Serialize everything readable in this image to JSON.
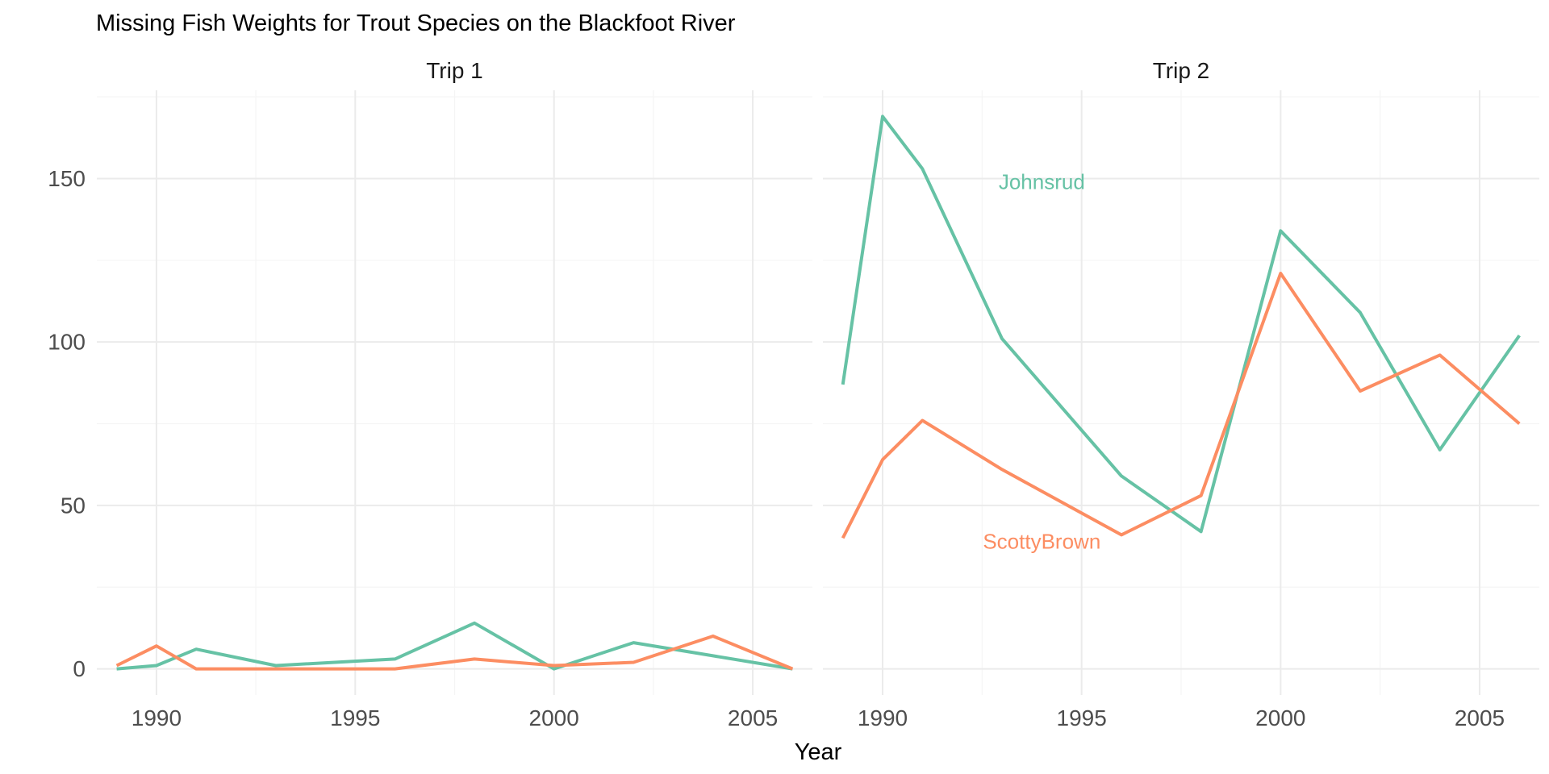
{
  "chart_data": {
    "type": "line",
    "title": "Missing Fish Weights for Trout Species on the Blackfoot River",
    "xlabel": "Year",
    "ylabel": "",
    "xlim": [
      1988.5,
      2006.5
    ],
    "ylim": [
      -8,
      177
    ],
    "x_ticks": [
      1990,
      1995,
      2000,
      2005
    ],
    "y_ticks": [
      0,
      50,
      100,
      150
    ],
    "grid": true,
    "legend": "none",
    "colors": {
      "Johnsrud": "#66c2a5",
      "ScottyBrown": "#fc8d62"
    },
    "facets": [
      {
        "label": "Trip 1",
        "series": [
          {
            "name": "Johnsrud",
            "x": [
              1989,
              1990,
              1991,
              1993,
              1996,
              1998,
              2000,
              2002,
              2004,
              2006
            ],
            "y": [
              0,
              1,
              6,
              1,
              3,
              14,
              0,
              8,
              4,
              0
            ]
          },
          {
            "name": "ScottyBrown",
            "x": [
              1989,
              1990,
              1991,
              1993,
              1996,
              1998,
              2000,
              2002,
              2004,
              2006
            ],
            "y": [
              1,
              7,
              0,
              0,
              0,
              3,
              1,
              2,
              10,
              0
            ]
          }
        ]
      },
      {
        "label": "Trip 2",
        "series": [
          {
            "name": "Johnsrud",
            "x": [
              1989,
              1990,
              1991,
              1993,
              1996,
              1998,
              2000,
              2002,
              2004,
              2006
            ],
            "y": [
              87,
              169,
              153,
              101,
              59,
              42,
              134,
              109,
              67,
              102
            ]
          },
          {
            "name": "ScottyBrown",
            "x": [
              1989,
              1990,
              1991,
              1993,
              1996,
              1998,
              2000,
              2002,
              2004,
              2006
            ],
            "y": [
              40,
              64,
              76,
              61,
              41,
              53,
              121,
              85,
              96,
              75
            ]
          }
        ],
        "annotations": [
          {
            "text": "Johnsrud",
            "series": "Johnsrud",
            "x": 1994,
            "y": 149
          },
          {
            "text": "ScottyBrown",
            "series": "ScottyBrown",
            "x": 1994,
            "y": 39
          }
        ]
      }
    ]
  }
}
